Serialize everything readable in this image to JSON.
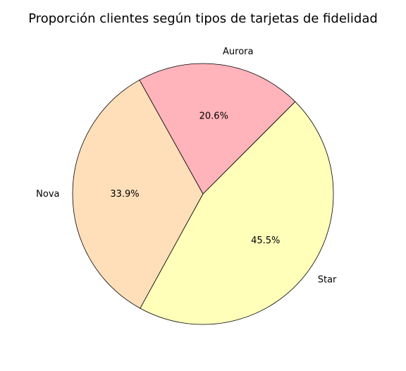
{
  "chart_data": {
    "type": "pie",
    "title": "Proporción clientes según tipos de tarjetas de fidelidad",
    "slices": [
      {
        "label": "Aurora",
        "value": 20.6,
        "pct_label": "20.6%",
        "color": "#ffb3ba"
      },
      {
        "label": "Nova",
        "value": 33.9,
        "pct_label": "33.9%",
        "color": "#ffdfba"
      },
      {
        "label": "Star",
        "value": 45.5,
        "pct_label": "45.5%",
        "color": "#ffffba"
      }
    ],
    "start_angle_deg": 45,
    "direction": "counterclockwise",
    "edge_color": "#000000"
  }
}
